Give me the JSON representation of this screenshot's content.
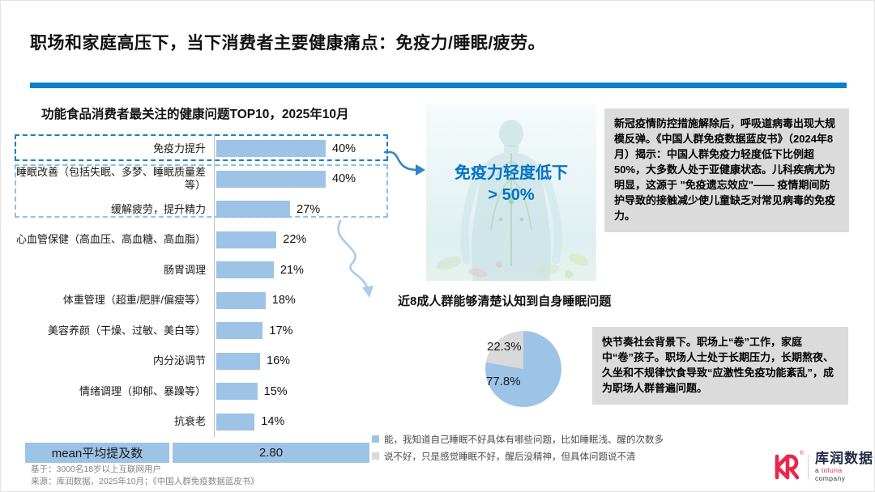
{
  "page_title": "职场和家庭高压下，当下消费者主要健康痛点：免疫力/睡眠/疲劳。",
  "chart_data": [
    {
      "type": "bar",
      "orientation": "horizontal",
      "title": "功能食品消费者最关注的健康问题TOP10，2025年10月",
      "categories": [
        "免疫力提升",
        "睡眠改善（包括失眠、多梦、睡眠质量差等）",
        "缓解疲劳，提升精力",
        "心血管保健（高血压、高血糖、高血脂）",
        "肠胃调理",
        "体重管理（超重/肥胖/偏瘦等）",
        "美容养颜（干燥、过敏、美白等）",
        "内分泌调节",
        "情绪调理（抑郁、暴躁等）",
        "抗衰老"
      ],
      "values": [
        40,
        40,
        27,
        22,
        21,
        18,
        17,
        16,
        15,
        14
      ],
      "value_labels": [
        "40%",
        "40%",
        "27%",
        "22%",
        "21%",
        "18%",
        "17%",
        "16%",
        "15%",
        "14%"
      ],
      "xlim": [
        0,
        45
      ],
      "grid": false,
      "highlighted_rows": {
        "box1": [
          0
        ],
        "box2": [
          1,
          2
        ]
      },
      "mean_row": {
        "label": "mean平均提及数",
        "value": "2.80"
      }
    },
    {
      "type": "pie",
      "title": "近8成人群能够清楚认知到自身睡眠问题",
      "legend_position": "bottom",
      "slices": [
        {
          "label": "能，我知道自己睡眠不好具体有哪些问题，比如睡眠浅、醒的次数多",
          "value": 77.8,
          "display": "77.8%",
          "color": "#9DC3E6"
        },
        {
          "label": "说不好，只是感觉睡眠不好，醒后没精神，但具体问题说不清",
          "value": 22.3,
          "display": "22.3%",
          "color": "#D9D9D9"
        }
      ]
    }
  ],
  "hero": {
    "caption_line1": "免疫力轻度低下",
    "caption_line2": "> 50%"
  },
  "callouts": {
    "immunity": "新冠疫情防控措施解除后，呼吸道病毒出现大规模反弹。《中国人群免疫数据蓝皮书》（2024年8月）揭示：中国人群免疫力轻度低下比例超50%，大多数人处于亚健康状态。儿科疾病尤为明显，这源于 \"免疫遗忘效应\"—— 疫情期间防护导致的接触减少使儿童缺乏对常见病毒的免疫力。",
    "lifestyle": "快节奏社会背景下。职场上“卷”工作，家庭中“卷”孩子。职场人士处于长期压力，长期熬夜、久坐和不规律饮食导致“应激性免疫功能紊乱”，成为职场人群普遍问题。"
  },
  "footnotes": {
    "line1": "基于：3000名18岁以上互联网用户",
    "line2": "来源：库润数据，2025年10月；《中国人群免疫数据蓝皮书》"
  },
  "logo": {
    "name": "库润数据",
    "subtitle_prefix": "a ",
    "subtitle_brand": "toluna",
    "subtitle_suffix": " company"
  },
  "colors": {
    "accent": "#0C7FCB",
    "bar_fill": "#9DC3E6",
    "gray_box": "#DBDBDB",
    "dash_strong": "#1B7EC6",
    "dash_light": "#90BFE7",
    "hero_text": "#0072C6",
    "logo_red": "#E9274C"
  }
}
